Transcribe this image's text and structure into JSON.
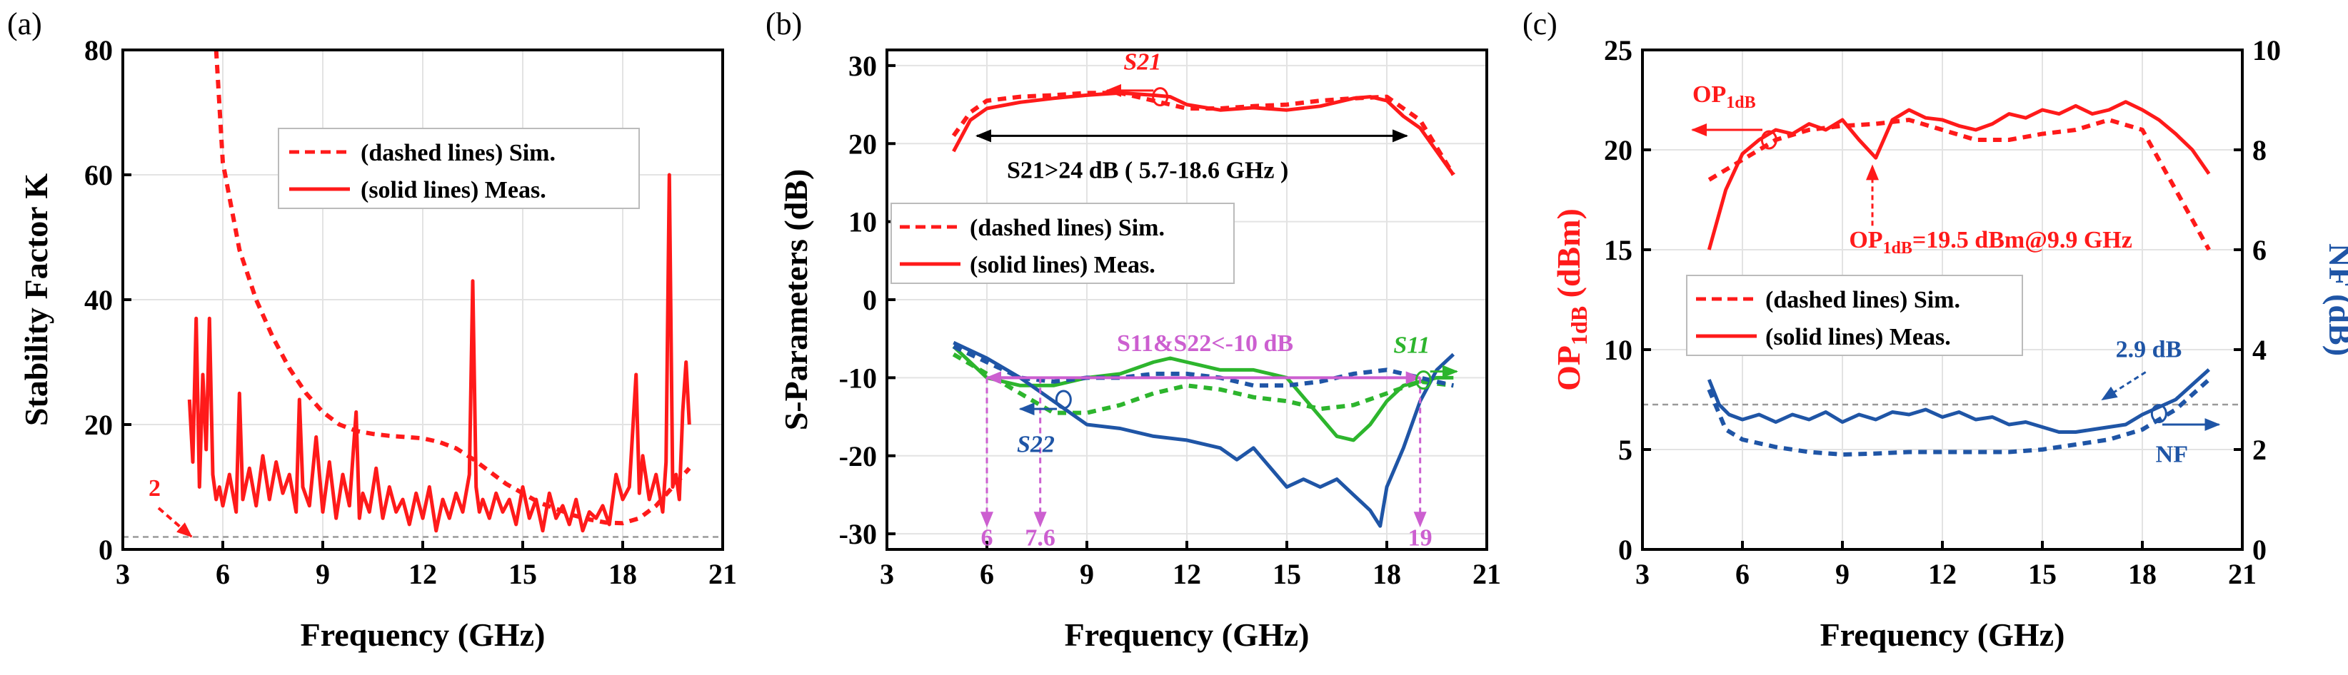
{
  "panels": {
    "a": {
      "label": "(a)"
    },
    "b": {
      "label": "(b)"
    },
    "c": {
      "label": "(c)"
    }
  },
  "colors": {
    "red": "#ff1a1a",
    "blue": "#1f55a6",
    "green": "#2db52d",
    "magenta": "#cc5fd0",
    "grey": "#9a9a9a"
  },
  "legend": {
    "sim": "(dashed lines) Sim.",
    "meas": "(solid lines) Meas."
  },
  "chart_data": [
    {
      "id": "a",
      "type": "line",
      "title": "",
      "xlabel": "Frequency (GHz)",
      "ylabel": "Stability Factor K",
      "xlim": [
        3,
        21
      ],
      "ylim": [
        0,
        80
      ],
      "xticks": [
        3,
        6,
        9,
        12,
        15,
        18,
        21
      ],
      "yticks": [
        0,
        20,
        40,
        60,
        80
      ],
      "reference_line": {
        "y": 2,
        "label": "2"
      },
      "series": [
        {
          "name": "Sim.",
          "style": "dashed",
          "color": "red",
          "x": [
            5.8,
            6,
            6.5,
            7,
            7.5,
            8,
            8.5,
            9,
            9.5,
            10,
            10.5,
            11,
            11.5,
            12,
            12.5,
            13,
            13.5,
            14,
            14.5,
            15,
            15.5,
            16,
            16.5,
            17,
            17.5,
            18,
            18.5,
            19,
            19.5,
            20
          ],
          "y": [
            80,
            62,
            48,
            40,
            34,
            29,
            25,
            22,
            20,
            19,
            18.5,
            18.2,
            18,
            17.8,
            17.2,
            16.2,
            14.5,
            12.5,
            10.5,
            9,
            7.5,
            6.5,
            5.5,
            4.8,
            4.3,
            4.2,
            5,
            7,
            10,
            13
          ]
        },
        {
          "name": "Meas.",
          "style": "solid",
          "color": "red",
          "x": [
            5.0,
            5.1,
            5.2,
            5.3,
            5.4,
            5.5,
            5.6,
            5.7,
            5.8,
            5.9,
            6.0,
            6.2,
            6.4,
            6.5,
            6.6,
            6.8,
            7.0,
            7.2,
            7.4,
            7.6,
            7.8,
            8.0,
            8.2,
            8.3,
            8.4,
            8.6,
            8.8,
            9.0,
            9.2,
            9.4,
            9.6,
            9.8,
            10.0,
            10.1,
            10.2,
            10.4,
            10.6,
            10.8,
            11.0,
            11.2,
            11.4,
            11.6,
            11.8,
            12.0,
            12.2,
            12.4,
            12.6,
            12.8,
            13.0,
            13.2,
            13.4,
            13.5,
            13.6,
            13.7,
            13.8,
            14.0,
            14.2,
            14.4,
            14.6,
            14.8,
            15.0,
            15.2,
            15.4,
            15.6,
            15.8,
            16.0,
            16.2,
            16.4,
            16.6,
            16.8,
            17.0,
            17.2,
            17.4,
            17.6,
            17.8,
            18.0,
            18.2,
            18.4,
            18.5,
            18.6,
            18.8,
            19.0,
            19.2,
            19.3,
            19.4,
            19.5,
            19.6,
            19.7,
            19.8,
            19.9,
            20.0
          ],
          "y": [
            24,
            14,
            37,
            10,
            28,
            16,
            37,
            12,
            8,
            10,
            7,
            12,
            6,
            25,
            8,
            13,
            7,
            15,
            8,
            14,
            9,
            12,
            6,
            24,
            10,
            7,
            18,
            6,
            14,
            5,
            12,
            7,
            22,
            5,
            9,
            6,
            13,
            5,
            10,
            6,
            8,
            4,
            9,
            5,
            10,
            3,
            8,
            5,
            9,
            6,
            12,
            43,
            10,
            6,
            8,
            5,
            9,
            6,
            8,
            4,
            10,
            5,
            8,
            3,
            9,
            5,
            7,
            4,
            8,
            3,
            6,
            5,
            7,
            4,
            12,
            8,
            10,
            28,
            9,
            15,
            8,
            12,
            6,
            14,
            60,
            10,
            12,
            8,
            22,
            30,
            20
          ]
        }
      ]
    },
    {
      "id": "b",
      "type": "line",
      "title": "",
      "xlabel": "Frequency (GHz)",
      "ylabel": "S-Parameters (dB)",
      "xlim": [
        3,
        21
      ],
      "ylim": [
        -32,
        32
      ],
      "xticks": [
        3,
        6,
        9,
        12,
        15,
        18,
        21
      ],
      "yticks": [
        -30,
        -20,
        -10,
        0,
        10,
        20,
        30
      ],
      "annotations": {
        "s21": "S21",
        "s21_range": "S21>24 dB  ( 5.7-18.6 GHz )",
        "s11s22": "S11&S22<-10 dB",
        "s11": "S11",
        "s22": "S22",
        "marker_6": "6",
        "marker_76": "7.6",
        "marker_19": "19"
      },
      "series": [
        {
          "name": "S21 Sim.",
          "style": "dashed",
          "color": "red",
          "x": [
            5,
            5.5,
            6,
            7,
            8,
            9,
            10,
            11,
            12,
            13,
            14,
            15,
            16,
            17,
            18,
            19,
            20
          ],
          "y": [
            21,
            24,
            25.5,
            26,
            26.2,
            26.5,
            26.5,
            25.5,
            24.5,
            24.5,
            24.8,
            25,
            25.5,
            25.8,
            26,
            23,
            16
          ]
        },
        {
          "name": "S21 Meas.",
          "style": "solid",
          "color": "red",
          "x": [
            5,
            5.5,
            6,
            7,
            8,
            9,
            10,
            11,
            11.5,
            12,
            13,
            14,
            15,
            16,
            17,
            17.5,
            18,
            18.5,
            19,
            20
          ],
          "y": [
            19,
            23,
            24.5,
            25.3,
            25.8,
            26.2,
            26.5,
            26.2,
            26,
            25,
            24.3,
            24.6,
            24.3,
            24.8,
            25.8,
            26,
            25.5,
            23.5,
            22,
            16
          ]
        },
        {
          "name": "S11 Sim.",
          "style": "dashed",
          "color": "green",
          "x": [
            5,
            6,
            7,
            8,
            9,
            10,
            11,
            12,
            13,
            14,
            15,
            16,
            17,
            18,
            19,
            20
          ],
          "y": [
            -7,
            -9.5,
            -12,
            -14.5,
            -14.5,
            -13.5,
            -12,
            -11,
            -11.5,
            -12.5,
            -13,
            -14,
            -13.5,
            -12,
            -10.5,
            -11
          ]
        },
        {
          "name": "S11 Meas.",
          "style": "solid",
          "color": "green",
          "x": [
            5,
            6,
            7,
            8,
            9,
            10,
            11,
            11.5,
            12,
            13,
            14,
            15,
            16,
            16.5,
            17,
            17.5,
            18,
            18.5,
            19,
            19.5,
            20
          ],
          "y": [
            -6,
            -10,
            -11,
            -11,
            -10,
            -9.5,
            -8,
            -7.5,
            -8,
            -9,
            -9,
            -10,
            -15,
            -17.5,
            -18,
            -16,
            -13,
            -11,
            -10.5,
            -10,
            -10
          ]
        },
        {
          "name": "S22 Sim.",
          "style": "dashed",
          "color": "blue",
          "x": [
            5,
            6,
            7,
            8,
            9,
            10,
            11,
            12,
            13,
            14,
            15,
            16,
            17,
            18,
            19,
            20
          ],
          "y": [
            -6,
            -8,
            -10,
            -10.5,
            -10,
            -10,
            -9.5,
            -9.5,
            -10,
            -11,
            -11,
            -10.5,
            -9.5,
            -9,
            -10,
            -11
          ]
        },
        {
          "name": "S22 Meas.",
          "style": "solid",
          "color": "blue",
          "x": [
            5,
            6,
            7,
            8,
            9,
            10,
            11,
            12,
            13,
            13.5,
            14,
            15,
            15.5,
            16,
            16.5,
            17,
            17.5,
            17.8,
            18,
            18.5,
            19,
            19.5,
            20
          ],
          "y": [
            -5.5,
            -7.5,
            -10,
            -13,
            -16,
            -16.5,
            -17.5,
            -18,
            -19,
            -20.5,
            -19,
            -24,
            -23,
            -24,
            -23,
            -25,
            -27,
            -29,
            -24,
            -19,
            -13,
            -9,
            -7
          ]
        }
      ]
    },
    {
      "id": "c",
      "type": "line",
      "title": "",
      "xlabel": "Frequency (GHz)",
      "ylabel_left": "OP1dB (dBm)",
      "ylabel_right": "NF (dB)",
      "xlim": [
        3,
        21
      ],
      "ylim_left": [
        0,
        25
      ],
      "ylim_right": [
        0,
        10
      ],
      "xticks": [
        3,
        6,
        9,
        12,
        15,
        18,
        21
      ],
      "yticks_left": [
        0,
        5,
        10,
        15,
        20,
        25
      ],
      "yticks_right": [
        0,
        2,
        4,
        6,
        8,
        10
      ],
      "reference_line": {
        "y_right": 2.9,
        "label": "2.9 dB"
      },
      "annotations": {
        "op1db": "OP1dB",
        "op1db_point": "OP1dB=19.5 dBm@9.9 GHz",
        "nf": "NF"
      },
      "series": [
        {
          "name": "OP1dB Sim.",
          "style": "dashed",
          "color": "red",
          "axis": "left",
          "x": [
            5,
            6,
            7,
            8,
            9,
            10,
            11,
            12,
            13,
            14,
            15,
            16,
            17,
            18,
            19,
            20
          ],
          "y": [
            18.5,
            19.5,
            20.5,
            21,
            21.2,
            21.3,
            21.5,
            21,
            20.5,
            20.5,
            20.8,
            21,
            21.5,
            21,
            18,
            15
          ]
        },
        {
          "name": "OP1dB Meas.",
          "style": "solid",
          "color": "red",
          "axis": "left",
          "x": [
            5,
            5.5,
            6,
            6.5,
            7,
            7.5,
            8,
            8.5,
            9,
            9.5,
            10,
            10.5,
            11,
            11.5,
            12,
            12.5,
            13,
            13.5,
            14,
            14.5,
            15,
            15.5,
            16,
            16.5,
            17,
            17.5,
            18,
            18.5,
            19,
            19.5,
            20
          ],
          "y": [
            15,
            18,
            19.8,
            20.5,
            21,
            20.8,
            21.3,
            21,
            21.5,
            20.5,
            19.6,
            21.5,
            22,
            21.6,
            21.5,
            21.2,
            21,
            21.3,
            21.8,
            21.6,
            22,
            21.8,
            22.2,
            21.8,
            22,
            22.4,
            22,
            21.5,
            20.8,
            20,
            18.8
          ]
        },
        {
          "name": "NF Sim.",
          "style": "dashed",
          "color": "blue",
          "axis": "right",
          "x": [
            5,
            5.5,
            6,
            7,
            8,
            9,
            10,
            11,
            12,
            13,
            14,
            15,
            16,
            17,
            18,
            19,
            20
          ],
          "y": [
            3.2,
            2.4,
            2.2,
            2.05,
            1.95,
            1.9,
            1.92,
            1.95,
            1.95,
            1.95,
            1.95,
            2.0,
            2.1,
            2.2,
            2.4,
            2.8,
            3.4
          ]
        },
        {
          "name": "NF Meas.",
          "style": "solid",
          "color": "blue",
          "axis": "right",
          "x": [
            5,
            5.3,
            5.6,
            6,
            6.5,
            7,
            7.5,
            8,
            8.5,
            9,
            9.5,
            10,
            10.5,
            11,
            11.5,
            12,
            12.5,
            13,
            13.5,
            14,
            14.5,
            15,
            15.5,
            16,
            16.5,
            17,
            17.5,
            18,
            18.5,
            19,
            19.5,
            20
          ],
          "y": [
            3.4,
            2.9,
            2.7,
            2.6,
            2.7,
            2.55,
            2.7,
            2.6,
            2.75,
            2.55,
            2.7,
            2.6,
            2.75,
            2.7,
            2.8,
            2.65,
            2.75,
            2.6,
            2.65,
            2.5,
            2.55,
            2.45,
            2.35,
            2.35,
            2.4,
            2.45,
            2.5,
            2.7,
            2.85,
            3.0,
            3.3,
            3.6
          ]
        }
      ]
    }
  ]
}
